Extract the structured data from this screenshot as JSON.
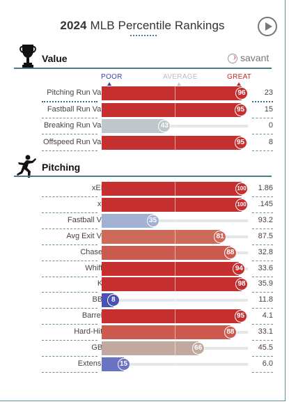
{
  "header": {
    "year": "2024",
    "title": "MLB Percentile Rankings"
  },
  "brand": {
    "name": "savant"
  },
  "sections": {
    "value": {
      "title": "Value",
      "icon": "trophy-icon"
    },
    "pitching": {
      "title": "Pitching",
      "icon": "pitcher-icon"
    }
  },
  "scale": {
    "poor": "POOR",
    "average": "AVERAGE",
    "great": "GREAT"
  },
  "value_rows": [
    {
      "label": "Pitching Run Value",
      "percentile": 96,
      "value": "23",
      "color": "#c62f30"
    },
    {
      "label": "Fastball Run Value",
      "percentile": 95,
      "value": "15",
      "color": "#c62f30"
    },
    {
      "label": "Breaking Run Value",
      "percentile": 43,
      "value": "0",
      "color": "#bdc7cc"
    },
    {
      "label": "Offspeed Run Value",
      "percentile": 95,
      "value": "8",
      "color": "#c62f30"
    }
  ],
  "pitching_rows": [
    {
      "label": "xERA",
      "percentile": 100,
      "value": "1.86",
      "color": "#c62f30"
    },
    {
      "label": "xBA",
      "percentile": 100,
      "value": ".145",
      "color": "#c62f30"
    },
    {
      "label": "Fastball Velo",
      "percentile": 35,
      "value": "93.2",
      "color": "#a3b1d4"
    },
    {
      "label": "Avg Exit Velo",
      "percentile": 81,
      "value": "87.5",
      "color": "#cd6a59"
    },
    {
      "label": "Chase %",
      "percentile": 88,
      "value": "32.8",
      "color": "#cd5a4e"
    },
    {
      "label": "Whiff %",
      "percentile": 94,
      "value": "33.6",
      "color": "#c62f30"
    },
    {
      "label": "K %",
      "percentile": 98,
      "value": "35.9",
      "color": "#c62f30"
    },
    {
      "label": "BB %",
      "percentile": 8,
      "value": "11.8",
      "color": "#4a52b4"
    },
    {
      "label": "Barrel %",
      "percentile": 95,
      "value": "4.1",
      "color": "#c62f30"
    },
    {
      "label": "Hard-Hit %",
      "percentile": 88,
      "value": "33.1",
      "color": "#cd5a4e"
    },
    {
      "label": "GB %",
      "percentile": 66,
      "value": "45.5",
      "color": "#c2a9a0"
    },
    {
      "label": "Extension",
      "percentile": 15,
      "value": "6.0",
      "color": "#6a72c4"
    }
  ]
}
